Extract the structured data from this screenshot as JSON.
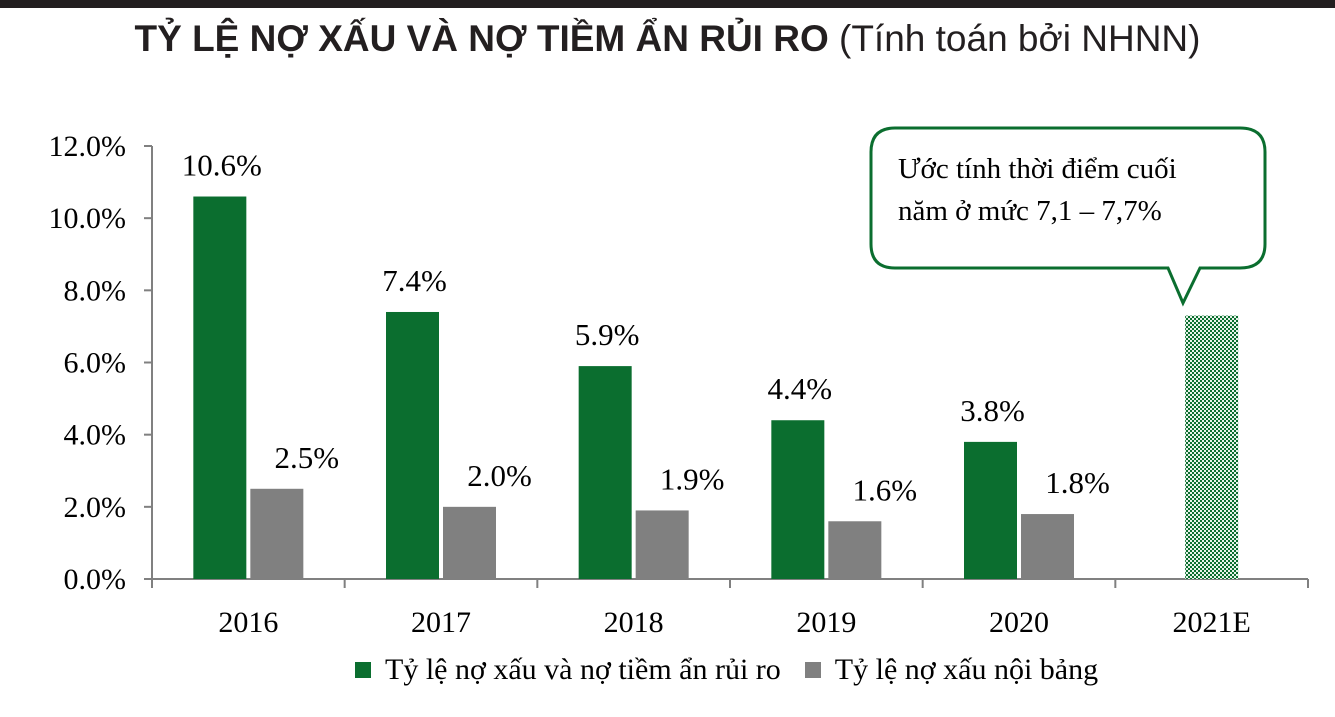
{
  "title": {
    "main": "TỶ LỆ NỢ XẤU VÀ NỢ TIỀM ẨN RỦI RO",
    "sub": "(Tính toán bởi NHNN)"
  },
  "callout": {
    "line1": "Ước tính thời điểm cuối",
    "line2": "năm ở mức 7,1 – 7,7%"
  },
  "colors": {
    "series1": "#0b6e2f",
    "series2": "#808080",
    "estimate": "#0b6e2f",
    "axis": "#808080"
  },
  "chart_data": {
    "type": "bar",
    "categories": [
      "2016",
      "2017",
      "2018",
      "2019",
      "2020",
      "2021E"
    ],
    "ylim": [
      0,
      12
    ],
    "yticks": [
      "0.0%",
      "2.0%",
      "4.0%",
      "6.0%",
      "8.0%",
      "10.0%",
      "12.0%"
    ],
    "series": [
      {
        "name": "Tỷ lệ nợ xấu và nợ tiềm ẩn rủi ro",
        "values": [
          10.6,
          7.4,
          5.9,
          4.4,
          3.8,
          null
        ],
        "labels": [
          "10.6%",
          "7.4%",
          "5.9%",
          "4.4%",
          "3.8%",
          ""
        ]
      },
      {
        "name": "Tỷ lệ nợ xấu nội bảng",
        "values": [
          2.5,
          2.0,
          1.9,
          1.6,
          1.8,
          null
        ],
        "labels": [
          "2.5%",
          "2.0%",
          "1.9%",
          "1.6%",
          "1.8%",
          ""
        ]
      }
    ],
    "estimate": {
      "category": "2021E",
      "value": 7.3,
      "range": [
        7.1,
        7.7
      ]
    },
    "grid": false,
    "legend": "bottom"
  }
}
